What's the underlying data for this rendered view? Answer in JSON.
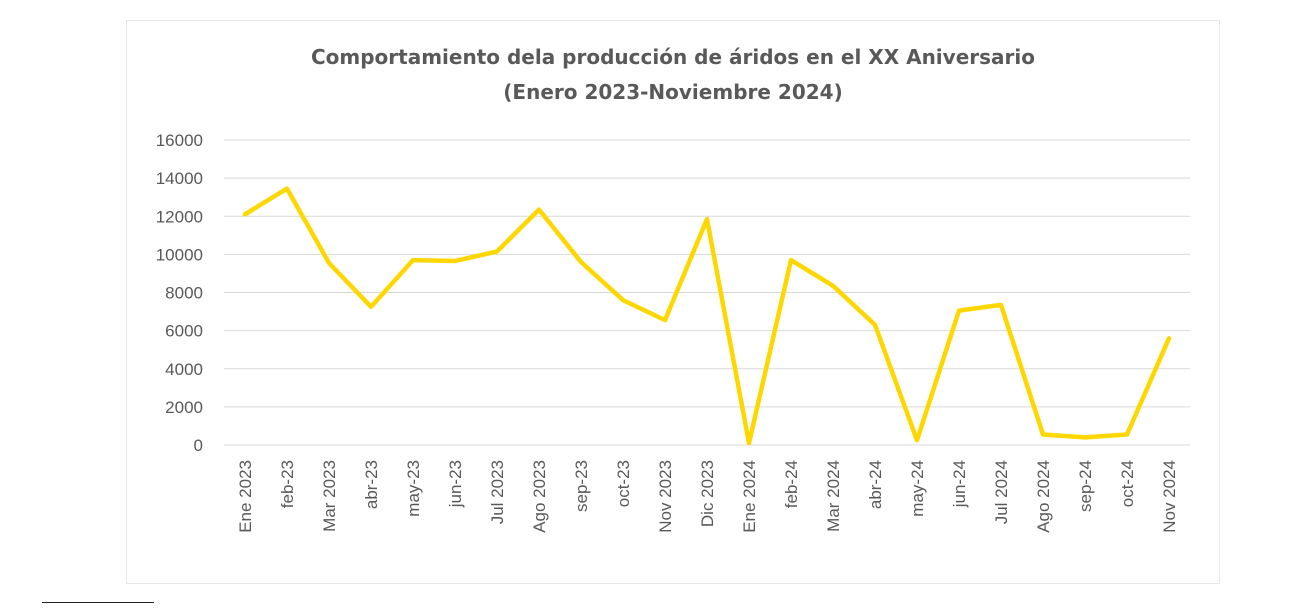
{
  "chart_data": {
    "type": "line",
    "title_lines": [
      "Comportamiento  dela producción de áridos en el XX Aniversario",
      "(Enero 2023-Noviembre  2024)"
    ],
    "categories": [
      "Ene 2023",
      "feb-23",
      "Mar 2023",
      "abr-23",
      "may-23",
      "jun-23",
      "Jul 2023",
      "Ago 2023",
      "sep-23",
      "oct-23",
      "Nov 2023",
      "Dic 2023",
      "Ene 2024",
      "feb-24",
      "Mar 2024",
      "abr-24",
      "may-24",
      "jun-24",
      "Jul 2024",
      "Ago 2024",
      "sep-24",
      "oct-24",
      "Nov 2024"
    ],
    "series": [
      {
        "values": [
          12100,
          13450,
          9550,
          7250,
          9700,
          9650,
          10150,
          12350,
          9600,
          7600,
          6550,
          11850,
          100,
          9700,
          8350,
          6300,
          250,
          7050,
          7350,
          550,
          400,
          550,
          5600
        ]
      }
    ],
    "ylim": [
      0,
      16000
    ],
    "yticks": [
      "0",
      "2000",
      "4000",
      "6000",
      "8000",
      "10000",
      "12000",
      "14000",
      "16000"
    ],
    "grid": true,
    "legend": "none",
    "colors": {
      "line": "#FFD700",
      "grid": "#d9d9d9",
      "text": "#595959"
    }
  }
}
